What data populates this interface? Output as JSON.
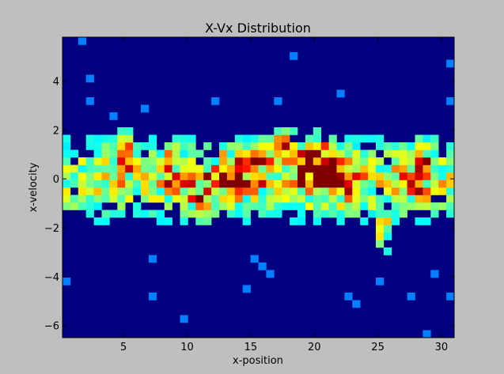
{
  "chart_data": {
    "type": "heatmap",
    "title": "X-Vx Distribution",
    "xlabel": "x-position",
    "ylabel": "x-velocity",
    "xlim": [
      0.2,
      31.0
    ],
    "ylim": [
      -6.5,
      5.8
    ],
    "xticks": [
      5,
      10,
      15,
      20,
      25,
      30
    ],
    "yticks": [
      -6,
      -4,
      -2,
      0,
      2,
      4
    ],
    "xtick_labels": [
      "5",
      "10",
      "15",
      "20",
      "25",
      "30"
    ],
    "ytick_labels": [
      "−6",
      "−4",
      "−2",
      "0",
      "2",
      "4"
    ],
    "colormap": "jet",
    "background_color": "#000080",
    "grid": false,
    "legend": "none",
    "bins": {
      "nx": 50,
      "ny": 40
    },
    "peaks": [
      {
        "x": 11.5,
        "y": -0.6,
        "w": 1.0,
        "s": 0.55
      },
      {
        "x": 13.5,
        "y": 0.2,
        "w": 0.9,
        "s": 0.5
      },
      {
        "x": 20.0,
        "y": 0.8,
        "w": 1.0,
        "s": 0.55
      },
      {
        "x": 21.0,
        "y": 0.4,
        "w": 0.9,
        "s": 0.5
      },
      {
        "x": 19.5,
        "y": 0.0,
        "w": 0.8,
        "s": 0.45
      },
      {
        "x": 27.5,
        "y": -0.2,
        "w": 0.85,
        "s": 0.45
      },
      {
        "x": 8.5,
        "y": 0.3,
        "w": 0.7,
        "s": 0.5
      },
      {
        "x": 15.5,
        "y": 0.5,
        "w": 0.7,
        "s": 0.5
      },
      {
        "x": 23.0,
        "y": -0.5,
        "w": 0.75,
        "s": 0.5
      },
      {
        "x": 5.0,
        "y": 1.0,
        "w": 0.6,
        "s": 0.5
      },
      {
        "x": 17.5,
        "y": 1.2,
        "w": 0.6,
        "s": 0.5
      },
      {
        "x": 25.5,
        "y": -2.2,
        "w": 0.55,
        "s": 0.45
      },
      {
        "x": 28.5,
        "y": 0.6,
        "w": 0.55,
        "s": 0.5
      }
    ],
    "scatter_cells": [
      {
        "x": 1.8,
        "y": 5.6
      },
      {
        "x": 2.6,
        "y": 4.2
      },
      {
        "x": 2.6,
        "y": 3.2
      },
      {
        "x": 12.2,
        "y": 3.2
      },
      {
        "x": 18.4,
        "y": 5.0
      },
      {
        "x": 30.6,
        "y": 4.8
      },
      {
        "x": 30.6,
        "y": 3.2
      },
      {
        "x": 17.0,
        "y": 3.2
      },
      {
        "x": 22.2,
        "y": 3.6
      },
      {
        "x": 0.6,
        "y": -4.2
      },
      {
        "x": 7.4,
        "y": -4.8
      },
      {
        "x": 9.8,
        "y": -5.6
      },
      {
        "x": 14.4,
        "y": -4.4
      },
      {
        "x": 16.6,
        "y": -4.0
      },
      {
        "x": 23.4,
        "y": -5.0
      },
      {
        "x": 25.4,
        "y": -4.2
      },
      {
        "x": 27.4,
        "y": -4.8
      },
      {
        "x": 28.6,
        "y": -6.2
      },
      {
        "x": 30.6,
        "y": -4.8
      },
      {
        "x": 29.4,
        "y": -3.8
      },
      {
        "x": 22.6,
        "y": -4.8
      },
      {
        "x": 6.6,
        "y": 3.0
      },
      {
        "x": 4.2,
        "y": 2.6
      },
      {
        "x": 15.2,
        "y": -3.4
      },
      {
        "x": 16.0,
        "y": -3.6
      },
      {
        "x": 7.4,
        "y": -3.4
      }
    ]
  }
}
